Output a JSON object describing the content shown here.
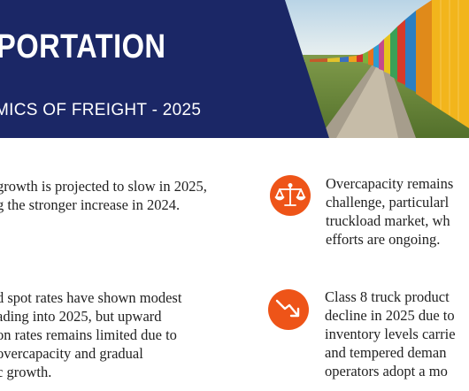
{
  "banner": {
    "title": "PORTATION",
    "subtitle": "MICS OF FREIGHT - 2025"
  },
  "colors": {
    "navy": "#1b2766",
    "accent_orange": "#ee5418",
    "text": "#222222"
  },
  "left_column": {
    "block1": {
      "lines": [
        "growth is projected to slow in 2025,",
        "g the stronger increase in 2024."
      ]
    },
    "block2": {
      "lines": [
        "d spot rates have shown modest",
        "ading into 2025, but upward",
        "on rates remains limited due to",
        "overcapacity and gradual",
        "c growth."
      ]
    }
  },
  "right_column": {
    "item1": {
      "icon": "scale-balance-icon",
      "lines": [
        "Overcapacity remains",
        "challenge, particularl",
        "truckload market, wh",
        "efforts are ongoing."
      ]
    },
    "item2": {
      "icon": "trend-down-arrow-icon",
      "lines": [
        "Class 8 truck product",
        "decline in 2025 due to",
        "inventory levels carrie",
        "and tempered deman",
        "operators adopt a mo"
      ]
    }
  }
}
